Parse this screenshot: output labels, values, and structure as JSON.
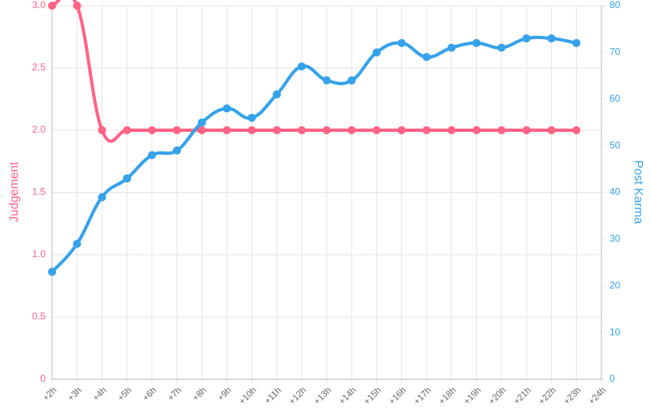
{
  "chart_data": {
    "type": "line",
    "categories": [
      "+2h",
      "+3h",
      "+4h",
      "+5h",
      "+6h",
      "+7h",
      "+8h",
      "+9h",
      "+10h",
      "+11h",
      "+12h",
      "+13h",
      "+14h",
      "+15h",
      "+16h",
      "+17h",
      "+18h",
      "+19h",
      "+20h",
      "+21h",
      "+22h",
      "+23h",
      "+24h"
    ],
    "series": [
      {
        "name": "Judgement",
        "color": "#ff6384",
        "axis": "y",
        "values": [
          3,
          3,
          2,
          2,
          2,
          2,
          2,
          2,
          2,
          2,
          2,
          2,
          2,
          2,
          2,
          2,
          2,
          2,
          2,
          2,
          2,
          2,
          null
        ]
      },
      {
        "name": "Post Karma",
        "color": "#36a2eb",
        "axis": "y2",
        "values": [
          23,
          29,
          39,
          43,
          48,
          49,
          55,
          58,
          56,
          61,
          67,
          64,
          64,
          70,
          72,
          69,
          71,
          72,
          71,
          73,
          73,
          72,
          null
        ]
      }
    ],
    "ylabel": "Judgement",
    "y2label": "Post Karma",
    "ylim": [
      0,
      3
    ],
    "yticks": [
      0,
      0.5,
      {
        "value": 1,
        "label": "1.0"
      },
      1.5,
      {
        "value": 2,
        "label": "2.0"
      },
      2.5,
      {
        "value": 3,
        "label": "3.0"
      }
    ],
    "y2lim": [
      0,
      80
    ],
    "y2ticks": [
      0,
      10,
      20,
      30,
      40,
      50,
      60,
      70,
      80
    ],
    "grid": true
  }
}
